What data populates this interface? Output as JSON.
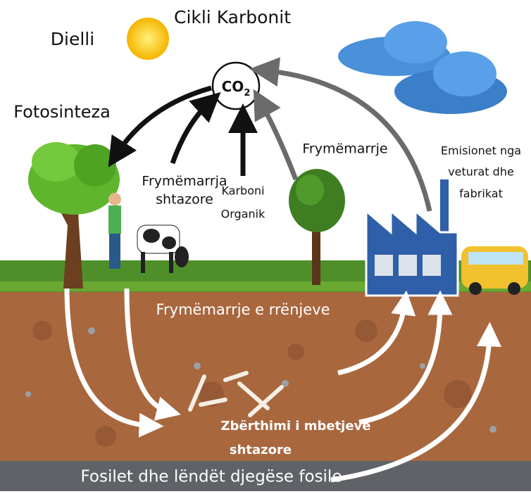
{
  "title": "Cikli Karbonit",
  "labels": {
    "sun": "Dielli",
    "photosynthesis": "Fotosinteza",
    "co2": {
      "main": "CO",
      "sub": "2"
    },
    "animal_respiration": [
      "Frymëmarrja",
      "shtazore"
    ],
    "organic_carbon": [
      "Karboni",
      "Organik"
    ],
    "plant_respiration": "Frymëmarrje",
    "emissions": [
      "Emisionet nga",
      "veturat dhe",
      "fabrikat"
    ],
    "root_respiration": "Frymëmarrje e rrënjeve",
    "decomposition": [
      "Zbërthimi i mbetjeve",
      "shtazore"
    ],
    "fossils": "Fosilet dhe lëndët djegëse fosile"
  }
}
